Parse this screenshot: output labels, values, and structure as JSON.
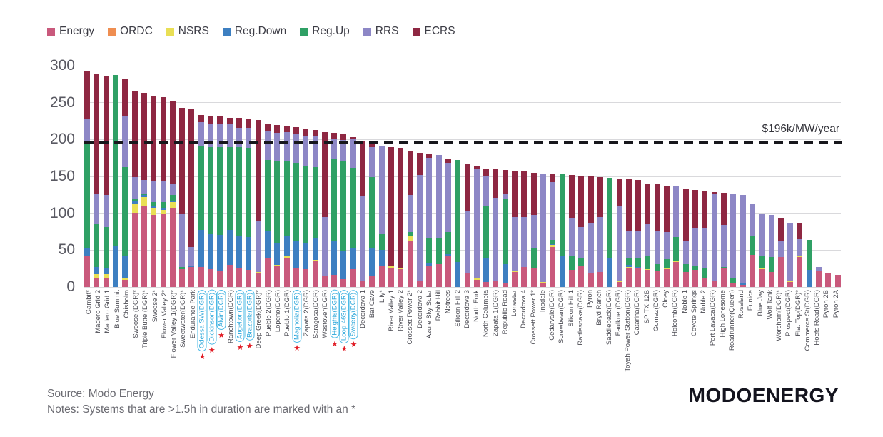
{
  "legend": {
    "items": [
      {
        "label": "Energy",
        "color": "#c9597c"
      },
      {
        "label": "ORDC",
        "color": "#ef8e51"
      },
      {
        "label": "NSRS",
        "color": "#e9df55"
      },
      {
        "label": "Reg.Down",
        "color": "#3d7fc1"
      },
      {
        "label": "Reg.Up",
        "color": "#2fa065"
      },
      {
        "label": "RRS",
        "color": "#8d87c6"
      },
      {
        "label": "ECRS",
        "color": "#8e2742"
      }
    ]
  },
  "chart_data": {
    "type": "bar",
    "subtype": "stacked-vertical",
    "ylim": [
      0,
      300
    ],
    "yticks": [
      0,
      50,
      100,
      150,
      200,
      250,
      300
    ],
    "grid": true,
    "legend_position": "top-left",
    "reference_line": {
      "value": 196,
      "label": "$196k/MW/year"
    },
    "series_names": [
      "Energy",
      "ORDC",
      "NSRS",
      "Reg.Down",
      "Reg.Up",
      "RRS",
      "ECRS"
    ],
    "highlight_style": {
      "oval_color": "#4ab9e6",
      "text_color": "#2ba6da",
      "star_color": "#e01b24",
      "star_glyph": "★"
    },
    "bars": [
      {
        "label": "Gambit*",
        "hl": false,
        "v": [
          42,
          0,
          0,
          10,
          143,
          32,
          66
        ]
      },
      {
        "label": "Madero Grid 2",
        "hl": false,
        "v": [
          12,
          0,
          5,
          10,
          58,
          42,
          161
        ]
      },
      {
        "label": "Madero Grid 1",
        "hl": false,
        "v": [
          13,
          0,
          4,
          9,
          55,
          44,
          161
        ]
      },
      {
        "label": "Blue Summit",
        "hl": false,
        "v": [
          0,
          0,
          0,
          55,
          232,
          0,
          0
        ]
      },
      {
        "label": "Chisholm",
        "hl": false,
        "v": [
          10,
          0,
          3,
          29,
          121,
          69,
          51
        ]
      },
      {
        "label": "Swoose (DGR)*",
        "hl": false,
        "v": [
          101,
          0,
          11,
          4,
          4,
          29,
          116
        ]
      },
      {
        "label": "Triple Butte (DGR)*",
        "hl": false,
        "v": [
          110,
          0,
          12,
          3,
          2,
          18,
          118
        ]
      },
      {
        "label": "Swoose 2*",
        "hl": false,
        "v": [
          98,
          0,
          9,
          3,
          5,
          28,
          115
        ]
      },
      {
        "label": "Flower Valley 2*",
        "hl": false,
        "v": [
          100,
          0,
          5,
          2,
          8,
          28,
          114
        ]
      },
      {
        "label": "Flower Valley 1(DGR)*",
        "hl": false,
        "v": [
          107,
          0,
          8,
          2,
          8,
          15,
          112
        ]
      },
      {
        "label": "Sweetwater(DGR)*",
        "hl": false,
        "v": [
          24,
          0,
          0,
          0,
          3,
          73,
          143
        ]
      },
      {
        "label": "Endurance Park",
        "hl": false,
        "v": [
          27,
          0,
          0,
          2,
          0,
          25,
          188
        ]
      },
      {
        "label": "Odessa SW(DGR)",
        "hl": true,
        "v": [
          27,
          0,
          0,
          50,
          115,
          32,
          9
        ]
      },
      {
        "label": "Dickinson(DGR)",
        "hl": true,
        "v": [
          24,
          0,
          0,
          48,
          118,
          32,
          9
        ]
      },
      {
        "label": "Alvin(DGR)",
        "hl": true,
        "v": [
          21,
          0,
          0,
          50,
          119,
          31,
          10
        ]
      },
      {
        "label": "Ranchtown(DGR)",
        "hl": false,
        "v": [
          30,
          0,
          0,
          47,
          113,
          32,
          7
        ]
      },
      {
        "label": "Angelton(DGR)",
        "hl": true,
        "v": [
          25,
          0,
          0,
          45,
          120,
          26,
          13
        ]
      },
      {
        "label": "Brazoria(DGR)",
        "hl": true,
        "v": [
          23,
          0,
          0,
          45,
          121,
          27,
          12
        ]
      },
      {
        "label": "Deep Greek(DGR)*",
        "hl": false,
        "v": [
          18,
          0,
          2,
          0,
          0,
          69,
          137
        ]
      },
      {
        "label": "Pueblo 2(DGR)",
        "hl": false,
        "v": [
          39,
          0,
          1,
          36,
          96,
          39,
          11
        ]
      },
      {
        "label": "Lopeno(DGR)",
        "hl": false,
        "v": [
          29,
          0,
          1,
          29,
          112,
          38,
          11
        ]
      },
      {
        "label": "Pueblo 1(DGR)",
        "hl": false,
        "v": [
          40,
          0,
          2,
          28,
          100,
          40,
          9
        ]
      },
      {
        "label": "Magnolia(DGR)",
        "hl": true,
        "v": [
          26,
          0,
          0,
          36,
          106,
          39,
          10
        ]
      },
      {
        "label": "Zapata 2(DGR)",
        "hl": false,
        "v": [
          24,
          0,
          0,
          36,
          105,
          40,
          9
        ]
      },
      {
        "label": "Saragosa(DGR)",
        "hl": false,
        "v": [
          36,
          0,
          1,
          29,
          97,
          41,
          9
        ]
      },
      {
        "label": "Westover(DGR)",
        "hl": false,
        "v": [
          15,
          0,
          0,
          0,
          0,
          80,
          115
        ]
      },
      {
        "label": "Heights(DGR)",
        "hl": true,
        "v": [
          16,
          0,
          0,
          47,
          110,
          27,
          9
        ]
      },
      {
        "label": "Loop 463(DGR)",
        "hl": true,
        "v": [
          11,
          0,
          0,
          38,
          122,
          28,
          9
        ]
      },
      {
        "label": "Sweeny(DGR)",
        "hl": true,
        "v": [
          24,
          0,
          0,
          28,
          110,
          38,
          3
        ]
      },
      {
        "label": "Decordova 1",
        "hl": false,
        "v": [
          8,
          0,
          1,
          0,
          0,
          114,
          75
        ]
      },
      {
        "label": "Bat Cave",
        "hl": false,
        "v": [
          15,
          0,
          0,
          37,
          97,
          41,
          6
        ]
      },
      {
        "label": "Lily*",
        "hl": false,
        "v": [
          28,
          0,
          0,
          22,
          22,
          120,
          0
        ]
      },
      {
        "label": "River Valley 1",
        "hl": false,
        "v": [
          26,
          0,
          2,
          0,
          0,
          0,
          162
        ]
      },
      {
        "label": "River Valley 2",
        "hl": false,
        "v": [
          24,
          0,
          2,
          0,
          0,
          0,
          163
        ]
      },
      {
        "label": "Crossett Power 2*",
        "hl": false,
        "v": [
          63,
          0,
          7,
          0,
          5,
          50,
          60
        ]
      },
      {
        "label": "Decordova 2",
        "hl": false,
        "v": [
          8,
          0,
          0,
          0,
          0,
          144,
          30
        ]
      },
      {
        "label": "Azure Sky Solar",
        "hl": false,
        "v": [
          29,
          0,
          0,
          3,
          34,
          109,
          6
        ]
      },
      {
        "label": "Rabbit Hill",
        "hl": false,
        "v": [
          31,
          0,
          0,
          0,
          35,
          113,
          0
        ]
      },
      {
        "label": "Notrees",
        "hl": false,
        "v": [
          43,
          0,
          0,
          2,
          30,
          93,
          5
        ]
      },
      {
        "label": "Silicon Hill 2",
        "hl": false,
        "v": [
          0,
          0,
          0,
          34,
          138,
          0,
          0
        ]
      },
      {
        "label": "Decordova 3",
        "hl": false,
        "v": [
          18,
          0,
          1,
          0,
          0,
          84,
          63
        ]
      },
      {
        "label": "North Fork",
        "hl": false,
        "v": [
          10,
          0,
          2,
          0,
          0,
          149,
          4
        ]
      },
      {
        "label": "North Columbia",
        "hl": false,
        "v": [
          7,
          0,
          0,
          32,
          71,
          40,
          11
        ]
      },
      {
        "label": "Zapata 1(DGR)",
        "hl": false,
        "v": [
          8,
          0,
          0,
          0,
          0,
          113,
          39
        ]
      },
      {
        "label": "Republic Road",
        "hl": false,
        "v": [
          5,
          0,
          0,
          26,
          89,
          6,
          33
        ]
      },
      {
        "label": "Lonestar",
        "hl": false,
        "v": [
          20,
          0,
          1,
          0,
          0,
          74,
          63
        ]
      },
      {
        "label": "Decordova 4",
        "hl": false,
        "v": [
          27,
          0,
          0,
          0,
          0,
          68,
          62
        ]
      },
      {
        "label": "Crossett Power 1*",
        "hl": false,
        "v": [
          26,
          0,
          0,
          0,
          26,
          46,
          57
        ]
      },
      {
        "label": "Inadale",
        "hl": false,
        "v": [
          5,
          0,
          2,
          0,
          0,
          147,
          0
        ]
      },
      {
        "label": "Cedarvale(DGR)",
        "hl": false,
        "v": [
          54,
          0,
          3,
          1,
          6,
          78,
          12
        ]
      },
      {
        "label": "Screwbean(DGR)",
        "hl": false,
        "v": [
          0,
          0,
          0,
          42,
          111,
          0,
          0
        ]
      },
      {
        "label": "Silicon Hill 1",
        "hl": false,
        "v": [
          23,
          0,
          0,
          0,
          19,
          52,
          58
        ]
      },
      {
        "label": "Rattlesnake(DGR)",
        "hl": false,
        "v": [
          28,
          0,
          1,
          0,
          10,
          42,
          70
        ]
      },
      {
        "label": "Pyron",
        "hl": false,
        "v": [
          18,
          0,
          0,
          0,
          0,
          69,
          63
        ]
      },
      {
        "label": "Bryd Ranch",
        "hl": false,
        "v": [
          20,
          0,
          0,
          0,
          0,
          75,
          54
        ]
      },
      {
        "label": "Saddleback(DGR)",
        "hl": false,
        "v": [
          0,
          0,
          0,
          40,
          108,
          0,
          0
        ]
      },
      {
        "label": "Faulkner(DGR)",
        "hl": false,
        "v": [
          7,
          0,
          2,
          0,
          0,
          101,
          37
        ]
      },
      {
        "label": "Toyah Power Station(DGR)",
        "hl": false,
        "v": [
          26,
          0,
          1,
          3,
          10,
          36,
          70
        ]
      },
      {
        "label": "Catarina(DGR)",
        "hl": false,
        "v": [
          25,
          0,
          0,
          2,
          12,
          37,
          69
        ]
      },
      {
        "label": "SP TX-12B",
        "hl": false,
        "v": [
          23,
          0,
          1,
          0,
          18,
          43,
          55
        ]
      },
      {
        "label": "Gomez(DGR)",
        "hl": false,
        "v": [
          21,
          0,
          0,
          0,
          10,
          45,
          63
        ]
      },
      {
        "label": "Olney",
        "hl": false,
        "v": [
          24,
          0,
          1,
          0,
          13,
          37,
          62
        ]
      },
      {
        "label": "Holcomb(DGR)",
        "hl": false,
        "v": [
          34,
          0,
          1,
          0,
          33,
          68,
          0
        ]
      },
      {
        "label": "Noble 1",
        "hl": false,
        "v": [
          20,
          0,
          0,
          0,
          11,
          31,
          72
        ]
      },
      {
        "label": "Coyote Springs",
        "hl": false,
        "v": [
          23,
          0,
          0,
          0,
          6,
          51,
          52
        ]
      },
      {
        "label": "Noble 2",
        "hl": false,
        "v": [
          13,
          0,
          0,
          0,
          13,
          54,
          51
        ]
      },
      {
        "label": "Port Lavaca(DGR)",
        "hl": false,
        "v": [
          8,
          0,
          0,
          0,
          0,
          119,
          2
        ]
      },
      {
        "label": "High Lonesome",
        "hl": false,
        "v": [
          25,
          0,
          0,
          0,
          2,
          57,
          44
        ]
      },
      {
        "label": "Roadrunner(Queen)",
        "hl": false,
        "v": [
          5,
          0,
          0,
          0,
          7,
          114,
          0
        ]
      },
      {
        "label": "Roseland",
        "hl": false,
        "v": [
          3,
          0,
          0,
          2,
          0,
          120,
          0
        ]
      },
      {
        "label": "Eunice",
        "hl": false,
        "v": [
          44,
          0,
          0,
          0,
          25,
          43,
          0
        ]
      },
      {
        "label": "Blue Jay",
        "hl": false,
        "v": [
          24,
          0,
          1,
          0,
          18,
          57,
          0
        ]
      },
      {
        "label": "Wolf Tank",
        "hl": false,
        "v": [
          20,
          0,
          0,
          0,
          21,
          57,
          0
        ]
      },
      {
        "label": "Worsham(DGR)*",
        "hl": false,
        "v": [
          41,
          0,
          0,
          0,
          0,
          22,
          31
        ]
      },
      {
        "label": "Prospect(DGR)",
        "hl": false,
        "v": [
          7,
          0,
          1,
          0,
          0,
          79,
          0
        ]
      },
      {
        "label": "Flat Top(DGR)*",
        "hl": false,
        "v": [
          41,
          0,
          2,
          0,
          0,
          22,
          21
        ]
      },
      {
        "label": "Commerce St(DGR)",
        "hl": false,
        "v": [
          0,
          0,
          0,
          23,
          41,
          0,
          0
        ]
      },
      {
        "label": "Hoefs Road(DGR)",
        "hl": false,
        "v": [
          21,
          0,
          0,
          0,
          0,
          6,
          0
        ]
      },
      {
        "label": "Pyron 2B",
        "hl": false,
        "v": [
          19,
          0,
          0,
          0,
          0,
          0,
          0
        ]
      },
      {
        "label": "Pyron 2A",
        "hl": false,
        "v": [
          16,
          0,
          0,
          0,
          0,
          0,
          0
        ]
      }
    ]
  },
  "footer": {
    "source": "Source: Modo Energy",
    "notes": "Notes: Systems that are >1.5h in duration are marked with an *"
  },
  "logo": "MODOENERGY"
}
